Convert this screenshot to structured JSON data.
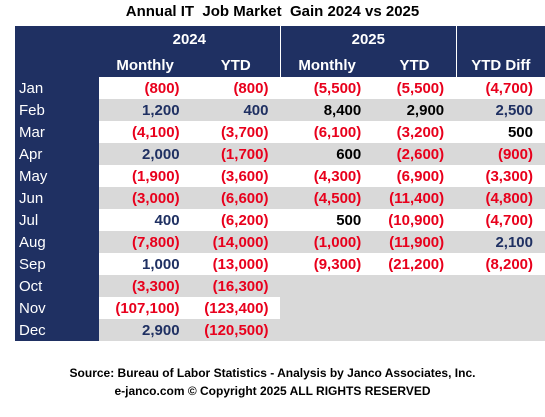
{
  "chart_data": {
    "type": "table",
    "title": "Annual IT  Job Market  Gain 2024 vs 2025",
    "year_headers": [
      "2024",
      "2025"
    ],
    "column_headers": [
      "Monthly",
      "YTD",
      "Monthly",
      "YTD",
      "YTD Diff"
    ],
    "rows": [
      {
        "month": "Jan",
        "values": [
          "(800)",
          "(800)",
          "(5,500)",
          "(5,500)",
          "(4,700)"
        ]
      },
      {
        "month": "Feb",
        "values": [
          "1,200",
          "400",
          "8,400",
          "2,900",
          "2,500"
        ]
      },
      {
        "month": "Mar",
        "values": [
          "(4,100)",
          "(3,700)",
          "(6,100)",
          "(3,200)",
          "500"
        ]
      },
      {
        "month": "Apr",
        "values": [
          "2,000",
          "(1,700)",
          "600",
          "(2,600)",
          "(900)"
        ]
      },
      {
        "month": "May",
        "values": [
          "(1,900)",
          "(3,600)",
          "(4,300)",
          "(6,900)",
          "(3,300)"
        ]
      },
      {
        "month": "Jun",
        "values": [
          "(3,000)",
          "(6,600)",
          "(4,500)",
          "(11,400)",
          "(4,800)"
        ]
      },
      {
        "month": "Jul",
        "values": [
          "400",
          "(6,200)",
          "500",
          "(10,900)",
          "(4,700)"
        ]
      },
      {
        "month": "Aug",
        "values": [
          "(7,800)",
          "(14,000)",
          "(1,000)",
          "(11,900)",
          "2,100"
        ]
      },
      {
        "month": "Sep",
        "values": [
          "1,000",
          "(13,000)",
          "(9,300)",
          "(21,200)",
          "(8,200)"
        ]
      },
      {
        "month": "Oct",
        "values": [
          "(3,300)",
          "(16,300)",
          "",
          "",
          ""
        ]
      },
      {
        "month": "Nov",
        "values": [
          "(107,100)",
          "(123,400)",
          "",
          "",
          ""
        ]
      },
      {
        "month": "Dec",
        "values": [
          "2,900",
          "(120,500)",
          "",
          "",
          ""
        ]
      }
    ],
    "colors": {
      "header": "#1f3062",
      "negative": "#e8001c",
      "positive": "#1f3062",
      "stripe": "#d9d9d9"
    }
  },
  "footer": {
    "source": "Source: Bureau of Labor Statistics - Analysis by Janco Associates, Inc.",
    "copyright": "e-janco.com © Copyright 2025 ALL RIGHTS RESERVED"
  }
}
